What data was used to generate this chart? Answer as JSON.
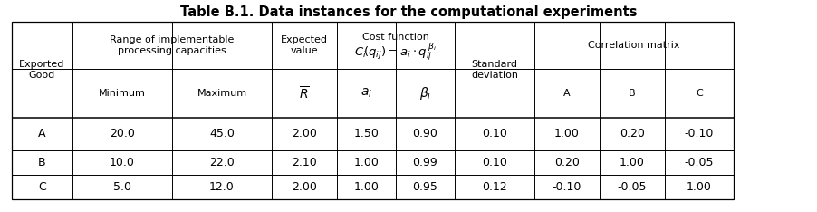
{
  "title": "Table B.1. Data instances for the computational experiments",
  "rows": [
    [
      "A",
      "20.0",
      "45.0",
      "2.00",
      "1.50",
      "0.90",
      "0.10",
      "1.00",
      "0.20",
      "-0.10"
    ],
    [
      "B",
      "10.0",
      "22.0",
      "2.10",
      "1.00",
      "0.99",
      "0.10",
      "0.20",
      "1.00",
      "-0.05"
    ],
    [
      "C",
      "5.0",
      "12.0",
      "2.00",
      "1.00",
      "0.95",
      "0.12",
      "-0.10",
      "-0.05",
      "1.00"
    ]
  ],
  "bg_color": "#ffffff",
  "line_color": "#000000",
  "title_fontsize": 10.5,
  "header_fontsize": 8.0,
  "subheader_fontsize": 9.0,
  "data_fontsize": 9.0,
  "fig_width": 9.02,
  "fig_height": 2.34,
  "dpi": 100
}
